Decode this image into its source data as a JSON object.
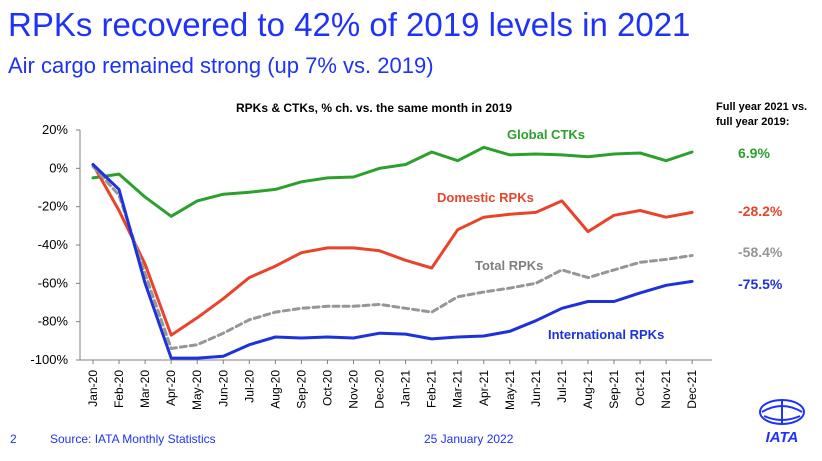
{
  "header": {
    "title": "RPKs recovered to 42% of 2019 levels in 2021",
    "subtitle": "Air cargo remained strong (up 7% vs. 2019)"
  },
  "chart_data": {
    "type": "line",
    "title": "RPKs & CTKs, % ch. vs. the same month in 2019",
    "x": [
      "Jan-20",
      "Feb-20",
      "Mar-20",
      "Apr-20",
      "May-20",
      "Jun-20",
      "Jul-20",
      "Aug-20",
      "Sep-20",
      "Oct-20",
      "Nov-20",
      "Dec-20",
      "Jan-21",
      "Feb-21",
      "Mar-21",
      "Apr-21",
      "May-21",
      "Jun-21",
      "Jul-21",
      "Aug-21",
      "Sep-21",
      "Oct-21",
      "Nov-21",
      "Dec-21"
    ],
    "ylim": [
      -100,
      20
    ],
    "yticks": [
      "20%",
      "0%",
      "-20%",
      "-40%",
      "-60%",
      "-80%",
      "-100%"
    ],
    "grid": false,
    "series": [
      {
        "name": "Global CTKs",
        "color": "#2ca02c",
        "dash": false,
        "label_pos": "top-right",
        "values": [
          -5,
          -3,
          -15,
          -25,
          -17,
          -13.5,
          -12.5,
          -11,
          -7,
          -5,
          -4.5,
          0,
          2,
          8.5,
          4,
          11,
          7,
          7.5,
          7,
          6,
          7.5,
          8,
          4,
          8.5
        ]
      },
      {
        "name": "Domestic RPKs",
        "color": "#e8442c",
        "dash": false,
        "values": [
          2,
          -22,
          -50,
          -87,
          -78,
          -68,
          -57,
          -51,
          -44,
          -41.5,
          -41.5,
          -43,
          -48,
          -52,
          -32,
          -25.5,
          -24,
          -23,
          -17,
          -33,
          -24.5,
          -22,
          -25.5,
          -23
        ]
      },
      {
        "name": "Total RPKs",
        "color": "#969696",
        "dash": true,
        "values": [
          1,
          -14,
          -55,
          -94,
          -92,
          -86,
          -79,
          -75,
          -73,
          -72,
          -72,
          -71,
          -73,
          -75,
          -67,
          -64.5,
          -62.5,
          -60,
          -53,
          -57,
          -53,
          -49,
          -47.5,
          -45.5
        ]
      },
      {
        "name": "International RPKs",
        "color": "#1e32dc",
        "dash": false,
        "values": [
          2,
          -11,
          -60,
          -99,
          -99,
          -98,
          -92,
          -88,
          -88.5,
          -88,
          -88.5,
          -86,
          -86.5,
          -89,
          -88,
          -87.5,
          -85,
          -79.5,
          -73,
          -69.5,
          -69.5,
          -65,
          -61,
          -59
        ]
      }
    ],
    "series_labels": [
      "Global CTKs",
      "Domestic RPKs",
      "Total RPKs",
      "International RPKs"
    ],
    "legend_header": "Full year 2021 vs. full year 2019:",
    "full_year_values": [
      {
        "label": "6.9%",
        "color": "#2ca02c"
      },
      {
        "label": "-28.2%",
        "color": "#e8442c"
      },
      {
        "label": "-58.4%",
        "color": "#969696"
      },
      {
        "label": "-75.5%",
        "color": "#1e32dc"
      }
    ]
  },
  "footer": {
    "page_number": "2",
    "source": "Source: IATA Monthly Statistics",
    "date": "25 January 2022",
    "logo_text": "IATA"
  }
}
